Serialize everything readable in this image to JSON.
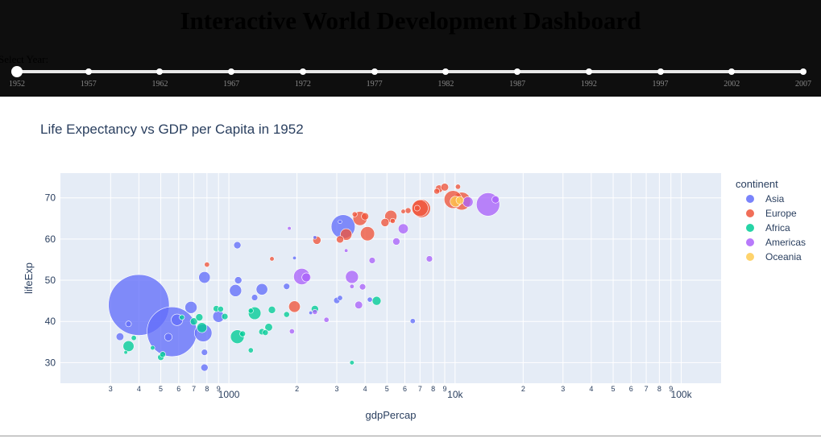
{
  "dashboard": {
    "title": "Interactive World Development Dashboard",
    "slider_label": "Select Year:",
    "years": [
      "1952",
      "1957",
      "1962",
      "1967",
      "1972",
      "1977",
      "1982",
      "1987",
      "1992",
      "1997",
      "2002",
      "2007"
    ],
    "selected_year": "1952"
  },
  "chart_data": {
    "type": "scatter",
    "title": "Life Expectancy vs GDP per Capita in 1952",
    "xlabel": "gdpPercap",
    "ylabel": "lifeExp",
    "x_scale": "log",
    "xlim": [
      180,
      150000
    ],
    "ylim": [
      25,
      76
    ],
    "legend_title": "continent",
    "legend_position": "right",
    "x_ticks": [
      {
        "v": 300,
        "t": "3"
      },
      {
        "v": 400,
        "t": "4"
      },
      {
        "v": 500,
        "t": "5"
      },
      {
        "v": 600,
        "t": "6"
      },
      {
        "v": 700,
        "t": "7"
      },
      {
        "v": 800,
        "t": "8"
      },
      {
        "v": 900,
        "t": "9"
      },
      {
        "v": 1000,
        "t": "1000"
      },
      {
        "v": 2000,
        "t": "2"
      },
      {
        "v": 3000,
        "t": "3"
      },
      {
        "v": 4000,
        "t": "4"
      },
      {
        "v": 5000,
        "t": "5"
      },
      {
        "v": 6000,
        "t": "6"
      },
      {
        "v": 7000,
        "t": "7"
      },
      {
        "v": 8000,
        "t": "8"
      },
      {
        "v": 9000,
        "t": "9"
      },
      {
        "v": 10000,
        "t": "10k"
      },
      {
        "v": 20000,
        "t": "2"
      },
      {
        "v": 30000,
        "t": "3"
      },
      {
        "v": 40000,
        "t": "4"
      },
      {
        "v": 50000,
        "t": "5"
      },
      {
        "v": 60000,
        "t": "6"
      },
      {
        "v": 70000,
        "t": "7"
      },
      {
        "v": 80000,
        "t": "8"
      },
      {
        "v": 90000,
        "t": "9"
      },
      {
        "v": 100000,
        "t": "100k"
      }
    ],
    "y_ticks": [
      30,
      40,
      50,
      60,
      70
    ],
    "series": [
      {
        "name": "Asia",
        "color": "#636efa",
        "points": [
          [
            400,
            44,
            556
          ],
          [
            560,
            37.5,
            372
          ],
          [
            1090,
            58.5,
            8
          ],
          [
            780,
            50.7,
            20
          ],
          [
            2400,
            60.4,
            2
          ],
          [
            3200,
            63,
            86
          ],
          [
            680,
            43.4,
            22
          ],
          [
            330,
            36.3,
            9
          ],
          [
            590,
            40.4,
            20
          ],
          [
            1070,
            47.5,
            22
          ],
          [
            770,
            37.2,
            46
          ],
          [
            900,
            41.2,
            20
          ],
          [
            1400,
            47.8,
            20
          ],
          [
            4200,
            45.3,
            4
          ],
          [
            540,
            36.2,
            9
          ],
          [
            360,
            39.4,
            5
          ],
          [
            3100,
            64.2,
            2
          ],
          [
            3000,
            45.1,
            6
          ],
          [
            1100,
            50,
            8
          ],
          [
            2300,
            42.1,
            2
          ],
          [
            1800,
            48.5,
            6
          ],
          [
            780,
            32.5,
            6
          ],
          [
            6500,
            40.1,
            4
          ],
          [
            780,
            28.8,
            8
          ],
          [
            3100,
            45.7,
            4
          ],
          [
            1300,
            45.8,
            6
          ],
          [
            1950,
            55.4,
            2
          ]
        ]
      },
      {
        "name": "Europe",
        "color": "#ef553b",
        "points": [
          [
            10700,
            69.2,
            48
          ],
          [
            7100,
            67.4,
            50
          ],
          [
            7000,
            67.5,
            40
          ],
          [
            5200,
            65.5,
            22
          ],
          [
            3800,
            65,
            30
          ],
          [
            4100,
            61.3,
            30
          ],
          [
            2450,
            59.7,
            10
          ],
          [
            3300,
            61.1,
            20
          ],
          [
            3100,
            59.9,
            8
          ],
          [
            8500,
            72.2,
            9
          ],
          [
            9800,
            69.6,
            48
          ],
          [
            9000,
            72.6,
            9
          ],
          [
            8300,
            71.6,
            5
          ],
          [
            6200,
            66.9,
            5
          ],
          [
            5900,
            66.7,
            3
          ],
          [
            5300,
            64.4,
            4
          ],
          [
            4900,
            64,
            10
          ],
          [
            4000,
            65.5,
            8
          ],
          [
            3600,
            66,
            4
          ],
          [
            6800,
            67.5,
            5
          ],
          [
            1950,
            43.6,
            20
          ],
          [
            1550,
            55.2,
            3
          ],
          [
            800,
            53.8,
            4
          ],
          [
            10300,
            72.7,
            4
          ]
        ]
      },
      {
        "name": "Africa",
        "color": "#00cc96",
        "points": [
          [
            1300,
            42,
            24
          ],
          [
            1090,
            36.3,
            28
          ],
          [
            880,
            43.1,
            6
          ],
          [
            4500,
            45,
            12
          ],
          [
            1550,
            42.8,
            8
          ],
          [
            2400,
            43,
            8
          ],
          [
            500,
            31.3,
            6
          ],
          [
            360,
            34,
            18
          ],
          [
            700,
            40,
            8
          ],
          [
            960,
            41.2,
            6
          ],
          [
            1400,
            37.5,
            6
          ],
          [
            1250,
            42.6,
            4
          ],
          [
            460,
            33.6,
            3
          ],
          [
            510,
            32,
            5
          ],
          [
            1500,
            38.6,
            9
          ],
          [
            3500,
            30,
            3
          ],
          [
            740,
            41,
            8
          ],
          [
            1800,
            41.7,
            5
          ],
          [
            620,
            41,
            4
          ],
          [
            1150,
            37,
            5
          ],
          [
            380,
            36,
            4
          ],
          [
            760,
            38.5,
            15
          ],
          [
            1450,
            37.3,
            5
          ],
          [
            920,
            43,
            5
          ],
          [
            1250,
            33,
            4
          ],
          [
            350,
            32.5,
            2
          ]
        ]
      },
      {
        "name": "Americas",
        "color": "#ab63fa",
        "points": [
          [
            13990,
            68.4,
            82
          ],
          [
            2100,
            50.9,
            40
          ],
          [
            5900,
            62.5,
            15
          ],
          [
            3500,
            50.8,
            25
          ],
          [
            3750,
            44,
            9
          ],
          [
            5500,
            59.4,
            8
          ],
          [
            11400,
            69,
            16
          ],
          [
            7700,
            55.2,
            6
          ],
          [
            2200,
            50.7,
            12
          ],
          [
            3900,
            48.4,
            6
          ],
          [
            4300,
            54.8,
            6
          ],
          [
            1900,
            37.6,
            4
          ],
          [
            2700,
            40.4,
            4
          ],
          [
            2400,
            42.3,
            4
          ],
          [
            3300,
            57.2,
            2
          ],
          [
            1850,
            62.6,
            2
          ],
          [
            3500,
            48.5,
            3
          ],
          [
            15100,
            69.6,
            8
          ]
        ]
      },
      {
        "name": "Oceania",
        "color": "#fecb52",
        "points": [
          [
            10040,
            69.1,
            17
          ],
          [
            10500,
            69.4,
            9
          ]
        ]
      }
    ]
  }
}
